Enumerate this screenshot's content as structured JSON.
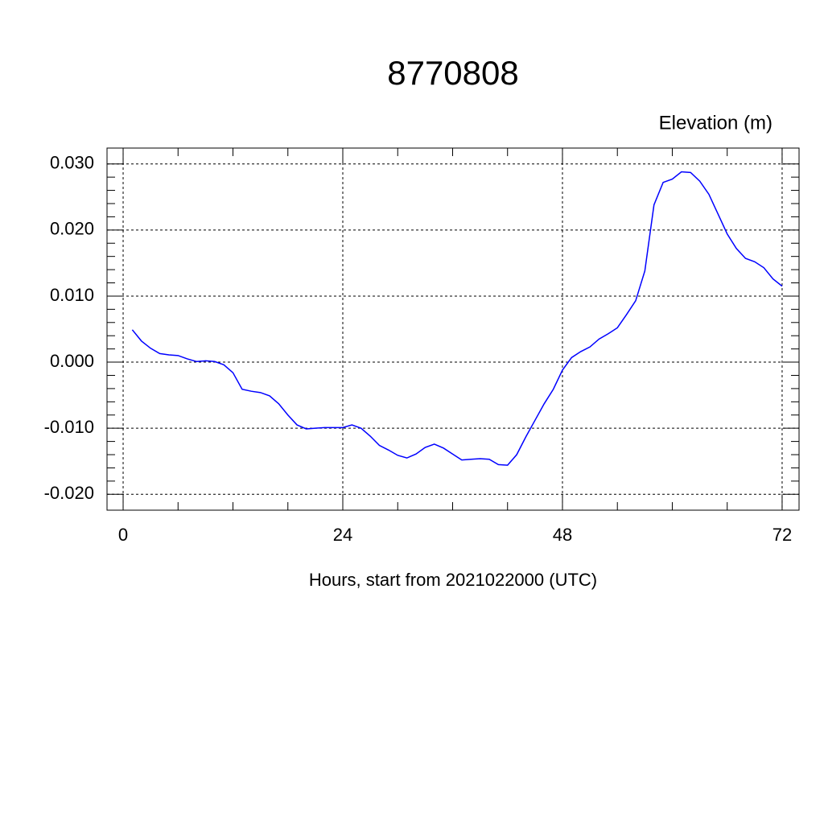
{
  "chart_data": {
    "type": "line",
    "title": "8770808",
    "y_label": "Elevation (m)",
    "x_label": "Hours, start from 2021022000 (UTC)",
    "x": [
      1,
      2,
      3,
      4,
      5,
      6,
      7,
      8,
      9,
      10,
      11,
      12,
      13,
      14,
      15,
      16,
      17,
      18,
      19,
      20,
      21,
      22,
      23,
      24,
      25,
      26,
      27,
      28,
      29,
      30,
      31,
      32,
      33,
      34,
      35,
      36,
      37,
      38,
      39,
      40,
      41,
      42,
      43,
      44,
      45,
      46,
      47,
      48,
      49,
      50,
      51,
      52,
      53,
      54,
      55,
      56,
      57,
      58,
      59,
      60,
      61,
      62,
      63,
      64,
      65,
      66,
      67,
      68,
      69,
      70,
      71,
      72
    ],
    "series": [
      {
        "name": "Elevation",
        "color": "#0000ff",
        "values": [
          0.0049,
          0.0032,
          0.0021,
          0.0013,
          0.0011,
          0.001,
          0.0005,
          0.0001,
          0.0002,
          0.0001,
          -0.0004,
          -0.0016,
          -0.0041,
          -0.0044,
          -0.0046,
          -0.0051,
          -0.0063,
          -0.008,
          -0.0095,
          -0.0101,
          -0.01,
          -0.0099,
          -0.0099,
          -0.0099,
          -0.0095,
          -0.01,
          -0.0112,
          -0.0126,
          -0.0133,
          -0.0141,
          -0.0145,
          -0.0139,
          -0.0129,
          -0.0124,
          -0.013,
          -0.0139,
          -0.0148,
          -0.0147,
          -0.0146,
          -0.0147,
          -0.0155,
          -0.0156,
          -0.014,
          -0.0113,
          -0.0088,
          -0.0063,
          -0.0041,
          -0.0012,
          0.0007,
          0.0016,
          0.0023,
          0.0035,
          0.0043,
          0.0052,
          0.0072,
          0.0093,
          0.0138,
          0.0238,
          0.0272,
          0.0277,
          0.0288,
          0.0287,
          0.0274,
          0.0254,
          0.0224,
          0.0194,
          0.0172,
          0.0157,
          0.0152,
          0.0143,
          0.0126,
          0.0115
        ]
      }
    ],
    "xlim": [
      -1.76,
      73.85
    ],
    "ylim": [
      -0.0224,
      0.0324
    ],
    "xticks": [
      0,
      24,
      48,
      72
    ],
    "yticks": [
      {
        "value": 0.03,
        "label": "0.030"
      },
      {
        "value": 0.02,
        "label": "0.020"
      },
      {
        "value": 0.01,
        "label": "0.010"
      },
      {
        "value": 0,
        "label": "0.000"
      },
      {
        "value": -0.01,
        "label": "-0.010"
      },
      {
        "value": -0.02,
        "label": "-0.020"
      }
    ],
    "grid": true
  }
}
